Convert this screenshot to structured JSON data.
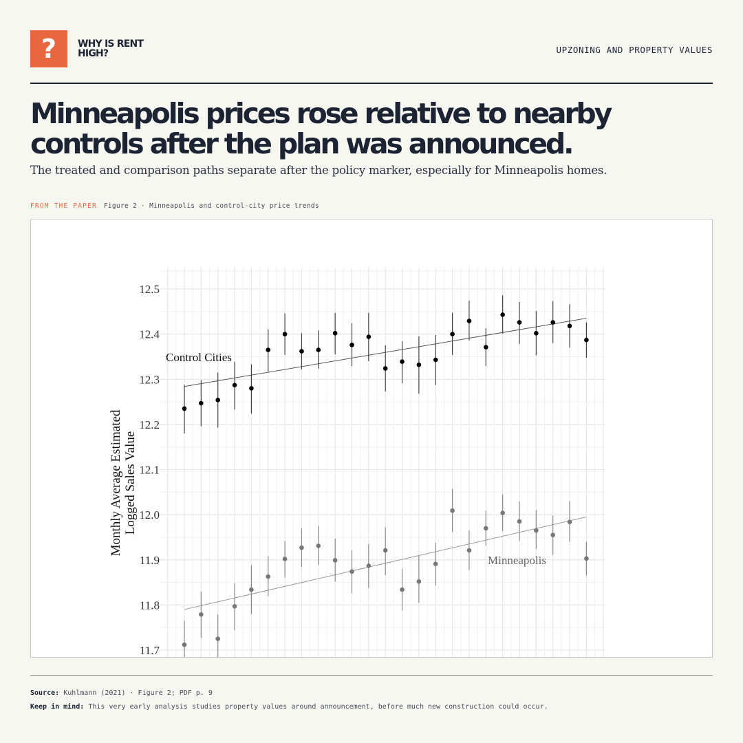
{
  "brand": {
    "logo_glyph": "?",
    "name": "WHY IS RENT HIGH?",
    "accent": "#e8673e"
  },
  "header": {
    "section_label": "UPZONING AND PROPERTY VALUES"
  },
  "headline": "Minneapolis prices rose relative to nearby controls after the plan was announced.",
  "subheadline": "The treated and comparison paths separate after the policy marker, especially for Minneapolis homes.",
  "figure": {
    "kicker": "FROM THE PAPER",
    "caption": "Figure 2 · Minneapolis and control-city price trends"
  },
  "footer": {
    "source_label": "Source:",
    "source_text": "Kuhlmann (2021) · Figure 2; PDF p. 9",
    "note_label": "Keep in mind:",
    "note_text": "This very early analysis studies property values around announcement, before much new construction could occur."
  },
  "chart_data": {
    "type": "scatter",
    "ylabel": [
      "Monthly Average Estimated",
      "Logged Sales Value"
    ],
    "ylim": [
      11.7,
      12.5
    ],
    "yticks": [
      "11.7",
      "11.8",
      "11.9",
      "12.0",
      "12.1",
      "12.2",
      "12.3",
      "12.4",
      "12.5"
    ],
    "grid": true,
    "x": [
      1,
      2,
      3,
      4,
      5,
      6,
      7,
      8,
      9,
      10,
      11,
      12,
      13,
      14,
      15,
      16,
      17,
      18,
      19,
      20,
      21,
      22,
      23,
      24,
      25
    ],
    "series": [
      {
        "name": "Control Cities",
        "color": "#000000",
        "values": [
          12.235,
          12.247,
          12.254,
          12.287,
          12.28,
          12.365,
          12.4,
          12.362,
          12.365,
          12.402,
          12.376,
          12.394,
          12.324,
          12.339,
          12.332,
          12.343,
          12.4,
          12.429,
          12.371,
          12.443,
          12.426,
          12.402,
          12.426,
          12.418,
          12.387
        ],
        "lower": [
          12.18,
          12.196,
          12.193,
          12.233,
          12.224,
          12.317,
          12.354,
          12.322,
          12.324,
          12.355,
          12.329,
          12.34,
          12.273,
          12.291,
          12.268,
          12.287,
          12.354,
          12.386,
          12.329,
          12.401,
          12.378,
          12.353,
          12.38,
          12.37,
          12.348
        ],
        "upper": [
          12.288,
          12.298,
          12.315,
          12.339,
          12.333,
          12.411,
          12.446,
          12.402,
          12.408,
          12.447,
          12.424,
          12.447,
          12.375,
          12.384,
          12.395,
          12.398,
          12.447,
          12.474,
          12.413,
          12.486,
          12.471,
          12.451,
          12.473,
          12.466,
          12.426
        ],
        "trend": [
          12.284,
          12.435
        ]
      },
      {
        "name": "Minneapolis",
        "color": "#777777",
        "values": [
          11.712,
          11.779,
          11.725,
          11.797,
          11.834,
          11.863,
          11.902,
          11.927,
          11.931,
          11.899,
          11.874,
          11.887,
          11.921,
          11.834,
          11.852,
          11.891,
          12.009,
          11.921,
          11.97,
          12.004,
          11.985,
          11.965,
          11.955,
          11.984,
          11.903
        ],
        "lower": [
          11.658,
          11.727,
          11.672,
          11.744,
          11.78,
          11.819,
          11.861,
          11.884,
          11.888,
          11.852,
          11.826,
          11.838,
          11.866,
          11.788,
          11.805,
          11.843,
          11.962,
          11.877,
          11.931,
          11.963,
          11.942,
          11.924,
          11.911,
          11.94,
          11.865
        ],
        "upper": [
          11.765,
          11.83,
          11.779,
          11.848,
          11.888,
          11.908,
          11.942,
          11.97,
          11.975,
          11.947,
          11.921,
          11.935,
          11.972,
          11.88,
          11.909,
          11.938,
          12.057,
          11.965,
          12.009,
          12.045,
          12.029,
          12.01,
          11.998,
          12.03,
          11.94
        ],
        "trend": [
          11.79,
          11.995
        ]
      }
    ]
  }
}
